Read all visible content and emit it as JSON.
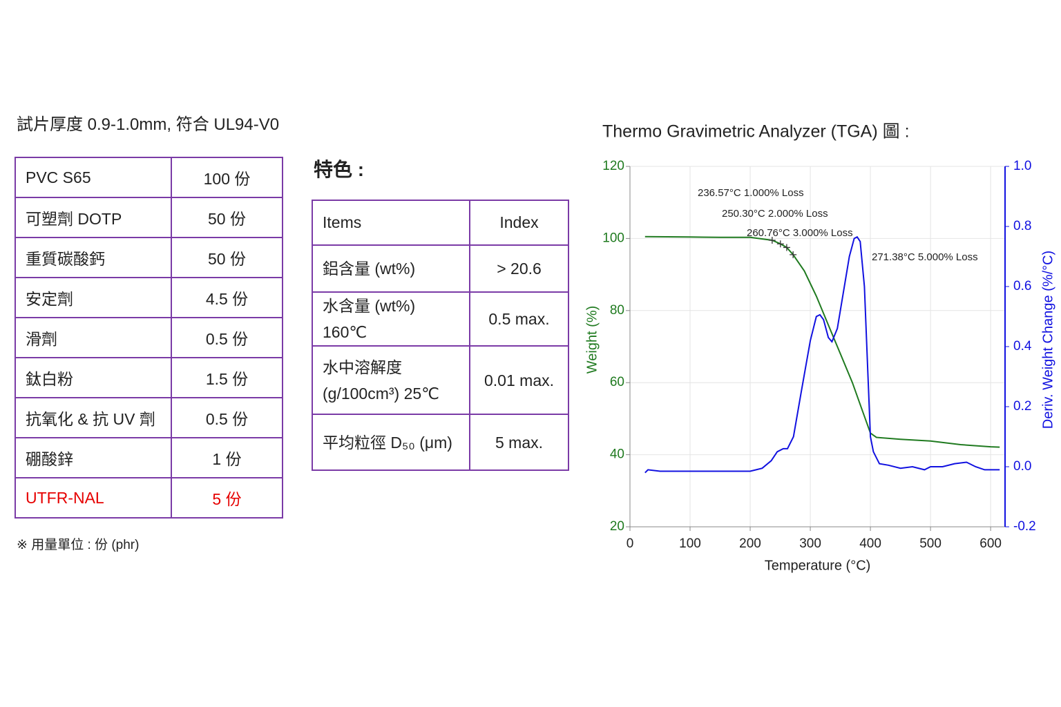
{
  "formulation": {
    "title": "試片厚度 0.9-1.0mm, 符合 UL94-V0",
    "rows": [
      {
        "cells": [
          "PVC S65",
          "100 份"
        ]
      },
      {
        "cells": [
          "可塑劑 DOTP",
          "50 份"
        ]
      },
      {
        "cells": [
          "重質碳酸鈣",
          "50 份"
        ]
      },
      {
        "cells": [
          "安定劑",
          "4.5 份"
        ]
      },
      {
        "cells": [
          "滑劑",
          "0.5 份"
        ]
      },
      {
        "cells": [
          "鈦白粉",
          "1.5 份"
        ]
      },
      {
        "cells": [
          "抗氧化 & 抗 UV 劑",
          "0.5 份"
        ]
      },
      {
        "cells": [
          "硼酸鋅",
          "1 份"
        ]
      },
      {
        "cells": [
          "UTFR-NAL",
          "5 份"
        ],
        "color": "#e60000"
      }
    ],
    "note": "※ 用量單位 : 份 (phr)"
  },
  "features": {
    "title": "特色 :",
    "header": [
      "Items",
      "Index"
    ],
    "rows": [
      [
        "鋁含量 (wt%)",
        "> 20.6"
      ],
      [
        "水含量 (wt%) 160℃",
        "0.5 max."
      ],
      [
        "水中溶解度 (g/100cm³) 25℃",
        "0.01 max."
      ],
      [
        "平均粒徑 D₅₀ (μm)",
        "5 max."
      ]
    ]
  },
  "chart_data": {
    "type": "line",
    "title": "Thermo Gravimetric Analyzer (TGA) 圖 :",
    "x_label": "Temperature (°C)",
    "y_label": "Weight (%)",
    "y2_label": "Deriv. Weight Change (%/°C)",
    "xlim": [
      0,
      624
    ],
    "xticks": [
      0,
      100,
      200,
      300,
      400,
      500,
      600
    ],
    "ylim": [
      20,
      120
    ],
    "yticks": [
      20,
      40,
      60,
      80,
      100,
      120
    ],
    "y2lim": [
      -0.2,
      1.0
    ],
    "y2ticks": [
      -0.2,
      {
        "value": 0,
        "label": "0.0"
      },
      0.2,
      0.4,
      0.6,
      0.8,
      {
        "value": 1,
        "label": "1.0"
      }
    ],
    "grid": true,
    "series": [
      {
        "color": "#1f7a1f",
        "axis": "y",
        "x": [
          25,
          100,
          150,
          200,
          236.57,
          250.3,
          260.76,
          271.38,
          290,
          310,
          330,
          350,
          370,
          385,
          400,
          410,
          450,
          500,
          550,
          600,
          615
        ],
        "values": [
          100.5,
          100.4,
          100.3,
          100.3,
          99.5,
          98.5,
          97.5,
          95.5,
          91,
          84,
          76,
          68,
          60,
          53,
          46,
          44.8,
          44.3,
          43.8,
          42.8,
          42.2,
          42.1
        ]
      },
      {
        "color": "#1010e0",
        "axis": "y2",
        "x": [
          25,
          30,
          50,
          100,
          150,
          200,
          210,
          220,
          235,
          245,
          255,
          262,
          272,
          285,
          300,
          310,
          316,
          322,
          330,
          336,
          345,
          355,
          365,
          373,
          378,
          383,
          390,
          396,
          400,
          405,
          415,
          430,
          450,
          470,
          490,
          500,
          520,
          540,
          560,
          575,
          590,
          615
        ],
        "values": [
          -0.02,
          -0.01,
          -0.015,
          -0.015,
          -0.015,
          -0.015,
          -0.01,
          -0.005,
          0.02,
          0.05,
          0.06,
          0.06,
          0.1,
          0.25,
          0.42,
          0.5,
          0.506,
          0.49,
          0.43,
          0.416,
          0.46,
          0.58,
          0.7,
          0.76,
          0.765,
          0.75,
          0.6,
          0.3,
          0.1,
          0.05,
          0.01,
          0.005,
          -0.005,
          0,
          -0.01,
          0,
          0,
          0.01,
          0.015,
          0,
          -0.01,
          -0.01
        ]
      }
    ],
    "loss_points": {
      "x": [
        236.57,
        250.3,
        260.76,
        271.38
      ],
      "y": [
        99.5,
        98.5,
        97.5,
        95.5
      ]
    },
    "annotations": [
      "236.57°C 1.000% Loss",
      "250.30°C 2.000% Loss",
      "260.76°C 3.000% Loss",
      "271.38°C 5.000% Loss"
    ]
  }
}
